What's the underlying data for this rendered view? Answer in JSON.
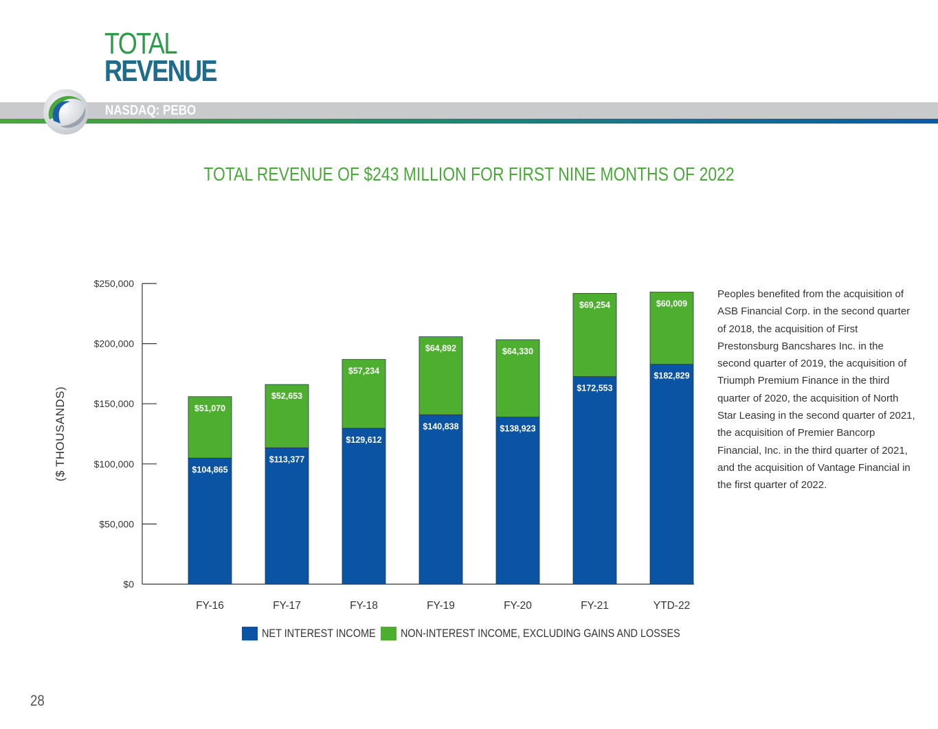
{
  "header": {
    "title_line1": "TOTAL",
    "title_line2": "REVENUE",
    "ticker": "NASDAQ: PEBO"
  },
  "colors": {
    "net_interest": "#0a54a3",
    "non_interest": "#4dae2f",
    "headline_green": "#4aa83a"
  },
  "chart_data": {
    "type": "bar",
    "stacked": true,
    "title": "TOTAL REVENUE OF $243 MILLION FOR FIRST NINE MONTHS OF 2022",
    "ylabel": "($ THOUSANDS)",
    "xlabel": "",
    "ylim": [
      0,
      250000
    ],
    "yticks": [
      "$0",
      "$50,000",
      "$100,000",
      "$150,000",
      "$200,000",
      "$250,000"
    ],
    "ytick_values": [
      0,
      50000,
      100000,
      150000,
      200000,
      250000
    ],
    "categories": [
      "FY-16",
      "FY-17",
      "FY-18",
      "FY-19",
      "FY-20",
      "FY-21",
      "YTD-22"
    ],
    "series": [
      {
        "name": "NET INTEREST INCOME",
        "values": [
          104865,
          113377,
          129612,
          140838,
          138923,
          172553,
          182829
        ],
        "labels": [
          "$104,865",
          "$113,377",
          "$129,612",
          "$140,838",
          "$138,923",
          "$172,553",
          "$182,829"
        ]
      },
      {
        "name": "NON-INTEREST INCOME, EXCLUDING GAINS AND LOSSES",
        "values": [
          51070,
          52653,
          57234,
          64892,
          64330,
          69254,
          60009
        ],
        "labels": [
          "$51,070",
          "$52,653",
          "$57,234",
          "$64,892",
          "$64,330",
          "$69,254",
          "$60,009"
        ]
      }
    ],
    "legend": "bottom"
  },
  "side_text": "Peoples benefited from the acquisition of ASB Financial Corp. in the second quarter of 2018, the acquisition of First Prestonsburg Bancshares Inc. in the second quarter of 2019, the acquisition of Triumph Premium Finance in the third quarter of 2020, the acquisition of North Star Leasing in the second quarter of 2021, the acquisition of Premier Bancorp Financial, Inc. in the third quarter of 2021, and the acquisition of Vantage Financial in the first quarter of 2022.",
  "page_number": "28"
}
